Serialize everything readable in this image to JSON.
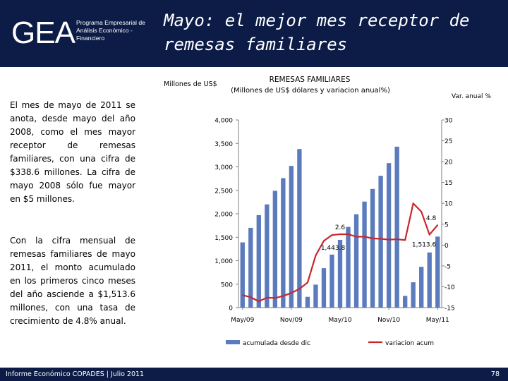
{
  "logo": {
    "text": "GEA",
    "subtitle": "Programa Empresarial de Análisis Económico - Financiero"
  },
  "slide_title": "Mayo: el mejor mes receptor de remesas familiares",
  "paragraphs": [
    "El mes de mayo de 2011 se anota, desde mayo del año 2008, como el mes mayor receptor de remesas familiares, con una cifra de $338.6 millones. La cifra de mayo 2008 sólo fue mayor en $5 millones.",
    "Con la cifra mensual de remesas familiares de mayo 2011, el monto acumulado en los primeros cinco meses del año asciende a $1,513.6 millones, con una tasa de crecimiento de 4.8% anual."
  ],
  "footer": {
    "text": "Informe Económico COPADES  |  Julio 2011",
    "page": "78"
  },
  "colors": {
    "header": "#0c1c46",
    "bars": "#5b7bbd",
    "line": "#c9262c"
  },
  "chart_data": {
    "type": "bar+line",
    "title": "REMESAS FAMILIARES",
    "subtitle": "(Millones de US$ dólares  y variacion anual%)",
    "ylabel": "Millones de US$",
    "y2label": "Var. anual %",
    "ylim": [
      0,
      4000
    ],
    "y2lim": [
      -15,
      30
    ],
    "y_ticks": [
      "0",
      "500",
      "1,000",
      "1,500",
      "2,000",
      "2,500",
      "3,000",
      "3,500",
      "4,000"
    ],
    "y2_ticks": [
      "-15",
      "-10",
      "-5",
      "0",
      "5",
      "10",
      "15",
      "20",
      "25",
      "30"
    ],
    "x_tick_labels": [
      "May/09",
      "Nov/09",
      "May/10",
      "Nov/10",
      "May/11"
    ],
    "x_tick_index": [
      0,
      6,
      12,
      18,
      24
    ],
    "categories": [
      "May/09",
      "Jun/09",
      "Jul/09",
      "Aug/09",
      "Sep/09",
      "Oct/09",
      "Nov/09",
      "Dec/09",
      "Jan/10",
      "Feb/10",
      "Mar/10",
      "Apr/10",
      "May/10",
      "Jun/10",
      "Jul/10",
      "Aug/10",
      "Sep/10",
      "Oct/10",
      "Nov/10",
      "Dec/10",
      "Jan/11",
      "Feb/11",
      "Mar/11",
      "Apr/11",
      "May/11"
    ],
    "series": [
      {
        "name": "acumulada desde dic",
        "type": "bar",
        "axis": "left",
        "values": [
          1390,
          1700,
          1970,
          2200,
          2490,
          2760,
          3020,
          3380,
          230,
          490,
          840,
          1130,
          1443.8,
          1720,
          1990,
          2260,
          2530,
          2810,
          3080,
          3430,
          250,
          540,
          870,
          1175,
          1513.6
        ]
      },
      {
        "name": "variacion acum",
        "type": "line",
        "axis": "right",
        "values": [
          -12.0,
          -12.5,
          -13.5,
          -12.6,
          -12.7,
          -12.2,
          -11.5,
          -10.5,
          -9.0,
          -2.5,
          1.0,
          2.4,
          2.6,
          2.6,
          2.0,
          2.0,
          1.6,
          1.5,
          1.3,
          1.4,
          1.2,
          10.0,
          8.0,
          2.5,
          4.8
        ]
      }
    ],
    "annotations": [
      {
        "text": "1,443.8",
        "index": 12,
        "series": 0
      },
      {
        "text": "2.6",
        "index": 12,
        "series": 1
      },
      {
        "text": "1,513.6",
        "index": 24,
        "series": 0
      },
      {
        "text": "4.8",
        "index": 24,
        "series": 1
      }
    ],
    "legend": {
      "position": "bottom"
    }
  }
}
